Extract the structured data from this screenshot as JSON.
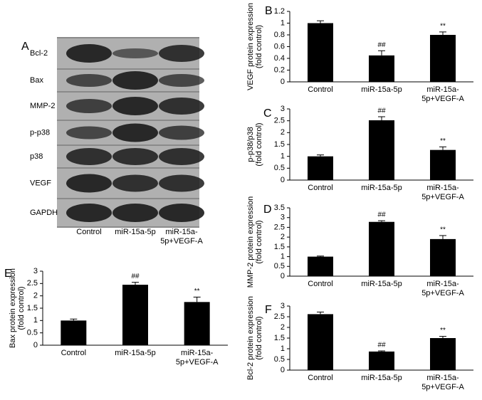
{
  "blot": {
    "label": "A",
    "rows": [
      "Bcl-2",
      "Bax",
      "MMP-2",
      "p-p38",
      "p38",
      "VEGF",
      "GAPDH"
    ],
    "columns": [
      [
        "Control"
      ],
      [
        "miR-15a-5p"
      ],
      [
        "miR-15a-",
        "5p+VEGF-A"
      ]
    ]
  },
  "chart_data": [
    {
      "type": "bar",
      "label": "B",
      "ylabel": [
        "VEGF protein expression",
        "(fold control)"
      ],
      "categories": [
        [
          "Control"
        ],
        [
          "miR-15a-5p"
        ],
        [
          "miR-15a-",
          "5p+VEGF-A"
        ]
      ],
      "values": [
        1.0,
        0.45,
        0.8
      ],
      "errors": [
        0.04,
        0.08,
        0.05
      ],
      "markers": [
        null,
        "##",
        "**"
      ],
      "color": "#000000",
      "ylim": [
        0,
        1.2
      ],
      "yticks": [
        0,
        0.2,
        0.4,
        0.6,
        0.8,
        1,
        1.2
      ]
    },
    {
      "type": "bar",
      "label": "C",
      "ylabel": [
        "p-p38/p38",
        "(fold control)"
      ],
      "categories": [
        [
          "Control"
        ],
        [
          "miR-15a-5p"
        ],
        [
          "miR-15a-",
          "5p+VEGF-A"
        ]
      ],
      "values": [
        1.0,
        2.52,
        1.27
      ],
      "errors": [
        0.06,
        0.15,
        0.13
      ],
      "markers": [
        null,
        "##",
        "**"
      ],
      "color": "#000000",
      "ylim": [
        0,
        3
      ],
      "yticks": [
        0,
        0.5,
        1,
        1.5,
        2,
        2.5,
        3
      ]
    },
    {
      "type": "bar",
      "label": "D",
      "ylabel": [
        "MMP-2 protein expression",
        "(fold control)"
      ],
      "categories": [
        [
          "Control"
        ],
        [
          "miR-15a-5p"
        ],
        [
          "miR-15a-",
          "5p+VEGF-A"
        ]
      ],
      "values": [
        1.0,
        2.78,
        1.9
      ],
      "errors": [
        0.03,
        0.06,
        0.18
      ],
      "markers": [
        null,
        "##",
        "**"
      ],
      "color": "#000000",
      "ylim": [
        0,
        3.5
      ],
      "yticks": [
        0,
        0.5,
        1,
        1.5,
        2,
        2.5,
        3,
        3.5
      ]
    },
    {
      "type": "bar",
      "label": "E",
      "ylabel": [
        "Bax protein expression",
        "(fold control)"
      ],
      "categories": [
        [
          "Control"
        ],
        [
          "miR-15a-5p"
        ],
        [
          "miR-15a-",
          "5p+VEGF-A"
        ]
      ],
      "values": [
        1.0,
        2.45,
        1.75
      ],
      "errors": [
        0.06,
        0.1,
        0.2
      ],
      "markers": [
        null,
        "##",
        "**"
      ],
      "color": "#000000",
      "ylim": [
        0,
        3
      ],
      "yticks": [
        0,
        0.5,
        1,
        1.5,
        2,
        2.5,
        3
      ]
    },
    {
      "type": "bar",
      "label": "F",
      "ylabel": [
        "Bcl-2 protein expression",
        "(fold control)"
      ],
      "categories": [
        [
          "Control"
        ],
        [
          "miR-15a-5p"
        ],
        [
          "miR-15a-",
          "5p+VEGF-A"
        ]
      ],
      "values": [
        2.62,
        0.87,
        1.5
      ],
      "errors": [
        0.1,
        0.03,
        0.08
      ],
      "markers": [
        null,
        "##",
        "**"
      ],
      "color": "#000000",
      "ylim": [
        0,
        3
      ],
      "yticks": [
        0,
        0.5,
        1,
        1.5,
        2,
        2.5,
        3
      ]
    }
  ]
}
